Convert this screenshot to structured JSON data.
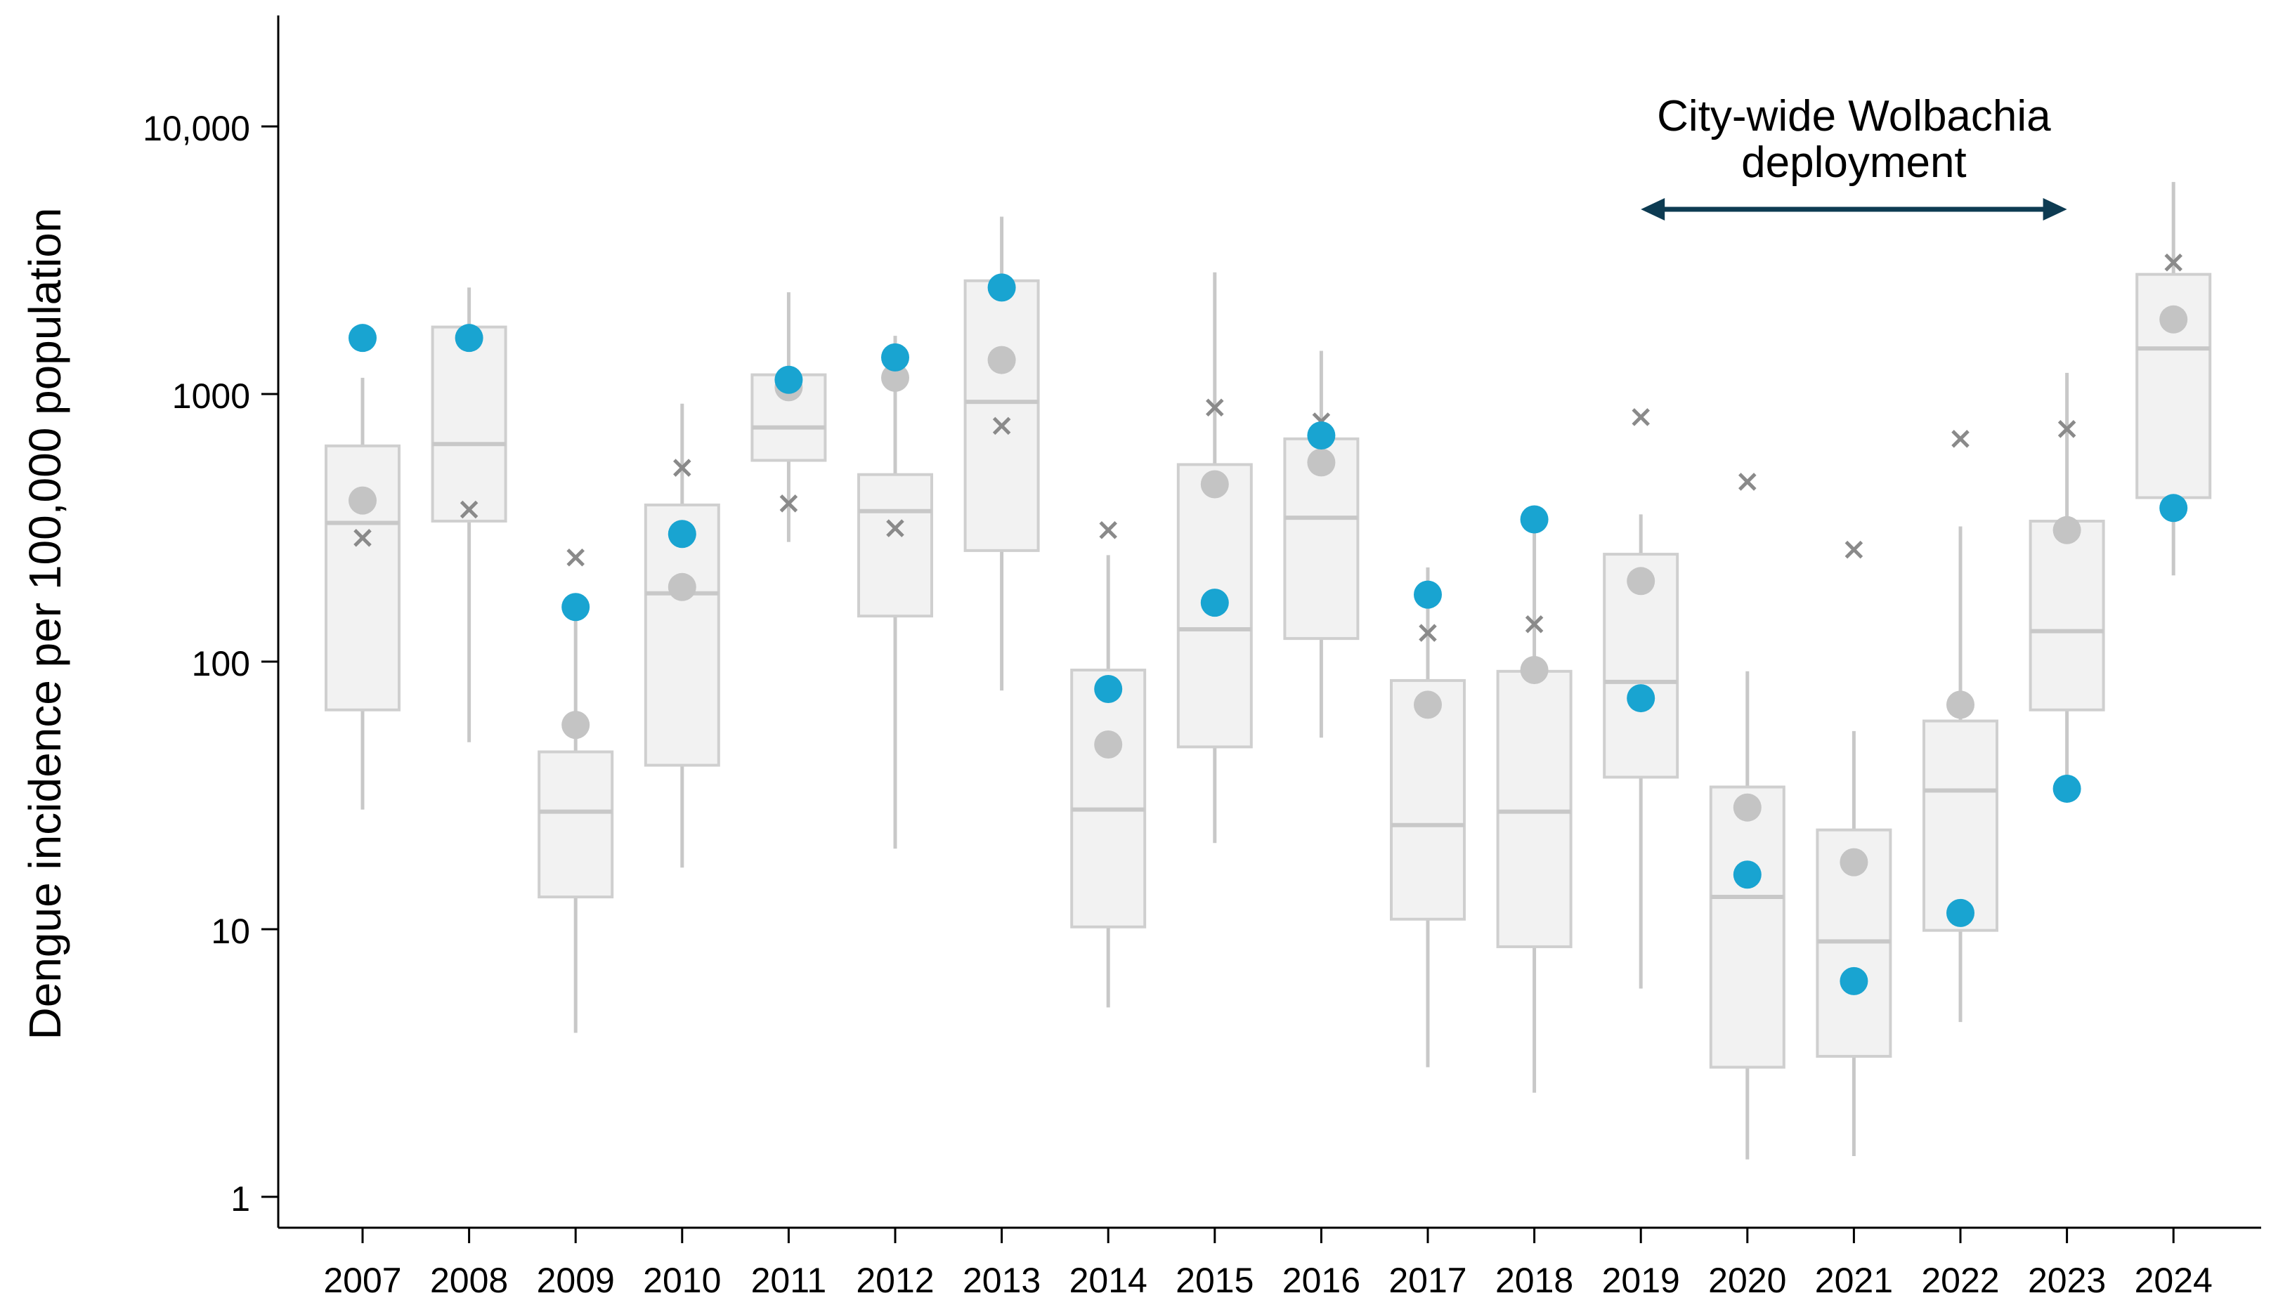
{
  "chart_data": {
    "type": "box",
    "ylabel": "Dengue incidence per 100,000 population",
    "yscale": "log",
    "ylim": [
      0.75,
      25000
    ],
    "yticks": [
      {
        "value": 1,
        "label": "1"
      },
      {
        "value": 10,
        "label": "10"
      },
      {
        "value": 100,
        "label": "100"
      },
      {
        "value": 1000,
        "label": "1000"
      },
      {
        "value": 10000,
        "label": "10,000"
      }
    ],
    "grid": false,
    "categories": [
      "2007",
      "2008",
      "2009",
      "2010",
      "2011",
      "2012",
      "2013",
      "2014",
      "2015",
      "2016",
      "2017",
      "2018",
      "2019",
      "2020",
      "2021",
      "2022",
      "2023",
      "2024"
    ],
    "boxes": [
      {
        "whisker_low": 28,
        "q1": 66,
        "median": 330,
        "q3": 640,
        "whisker_high": 1150
      },
      {
        "whisker_low": 50,
        "q1": 335,
        "median": 650,
        "q3": 1780,
        "whisker_high": 2500
      },
      {
        "whisker_low": 4.1,
        "q1": 13.2,
        "median": 27.5,
        "q3": 46,
        "whisker_high": 150
      },
      {
        "whisker_low": 17,
        "q1": 41,
        "median": 180,
        "q3": 385,
        "whisker_high": 920
      },
      {
        "whisker_low": 280,
        "q1": 565,
        "median": 750,
        "q3": 1180,
        "whisker_high": 2400
      },
      {
        "whisker_low": 20,
        "q1": 148,
        "median": 365,
        "q3": 500,
        "whisker_high": 1650
      },
      {
        "whisker_low": 78,
        "q1": 260,
        "median": 935,
        "q3": 2650,
        "whisker_high": 4600
      },
      {
        "whisker_low": 5.1,
        "q1": 10.2,
        "median": 28,
        "q3": 93,
        "whisker_high": 250
      },
      {
        "whisker_low": 21,
        "q1": 48,
        "median": 132,
        "q3": 545,
        "whisker_high": 2850
      },
      {
        "whisker_low": 52,
        "q1": 122,
        "median": 345,
        "q3": 680,
        "whisker_high": 1450
      },
      {
        "whisker_low": 3.05,
        "q1": 10.9,
        "median": 24.5,
        "q3": 85,
        "whisker_high": 225
      },
      {
        "whisker_low": 2.45,
        "q1": 8.6,
        "median": 27.5,
        "q3": 92,
        "whisker_high": 340
      },
      {
        "whisker_low": 6,
        "q1": 37,
        "median": 84,
        "q3": 252,
        "whisker_high": 355
      },
      {
        "whisker_low": 1.38,
        "q1": 3.05,
        "median": 13.2,
        "q3": 34,
        "whisker_high": 92
      },
      {
        "whisker_low": 1.42,
        "q1": 3.35,
        "median": 9,
        "q3": 23.5,
        "whisker_high": 55
      },
      {
        "whisker_low": 4.5,
        "q1": 9.9,
        "median": 33,
        "q3": 60,
        "whisker_high": 320
      },
      {
        "whisker_low": 33,
        "q1": 66,
        "median": 130,
        "q3": 335,
        "whisker_high": 1200
      },
      {
        "whisker_low": 210,
        "q1": 410,
        "median": 1480,
        "q3": 2800,
        "whisker_high": 6200
      }
    ],
    "series": [
      {
        "marker": "filled-circle",
        "color": "#19a4d1",
        "values": [
          1620,
          1620,
          160,
          300,
          1130,
          1370,
          2500,
          79,
          166,
          700,
          178,
          340,
          73,
          16,
          6.4,
          11.5,
          33.5,
          375
        ]
      },
      {
        "marker": "filled-circle",
        "color": "#c4c4c4",
        "values": [
          400,
          null,
          58,
          190,
          1060,
          1150,
          1340,
          49,
          460,
          555,
          69,
          93,
          200,
          28.5,
          17.8,
          69,
          310,
          1900
        ]
      },
      {
        "marker": "x",
        "color": "#8a8a8a",
        "values": [
          290,
          370,
          245,
          530,
          390,
          315,
          760,
          310,
          890,
          790,
          128,
          138,
          820,
          470,
          262,
          680,
          740,
          3100
        ]
      }
    ],
    "annotations": [
      {
        "text_lines": [
          "City-wide Wolbachia",
          "deployment"
        ],
        "arrow_from": "2019",
        "arrow_to": "2023",
        "arrow_color": "#0d3b52"
      }
    ]
  }
}
